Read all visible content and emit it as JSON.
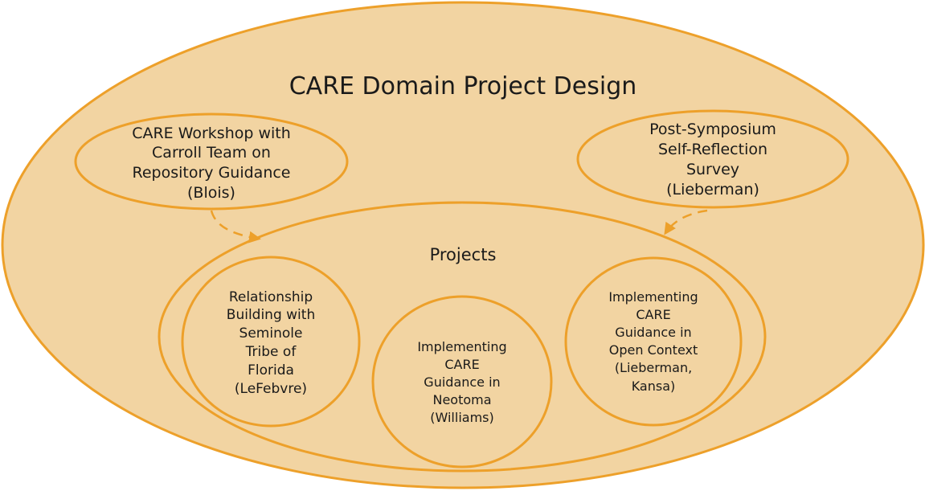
{
  "diagram": {
    "title": "CARE Domain Project Design",
    "workshop": {
      "lines": [
        "CARE Workshop with",
        "Carroll Team on",
        "Repository Guidance",
        "(Blois)"
      ]
    },
    "survey": {
      "lines": [
        "Post-Symposium",
        "Self-Reflection",
        "Survey",
        "(Lieberman)"
      ]
    },
    "projects": {
      "label": "Projects",
      "seminole": {
        "lines": [
          "Relationship",
          "Building with",
          "Seminole",
          "Tribe of",
          "Florida",
          "(LeFebvre)"
        ]
      },
      "neotoma": {
        "lines": [
          "Implementing",
          "CARE",
          "Guidance in",
          "Neotoma",
          "(Williams)"
        ]
      },
      "open_context": {
        "lines": [
          "Implementing",
          "CARE",
          "Guidance in",
          "Open Context",
          "(Lieberman,",
          "Kansa)"
        ]
      }
    },
    "colors": {
      "fill": "#f2d4a2",
      "stroke": "#eda02a"
    }
  }
}
